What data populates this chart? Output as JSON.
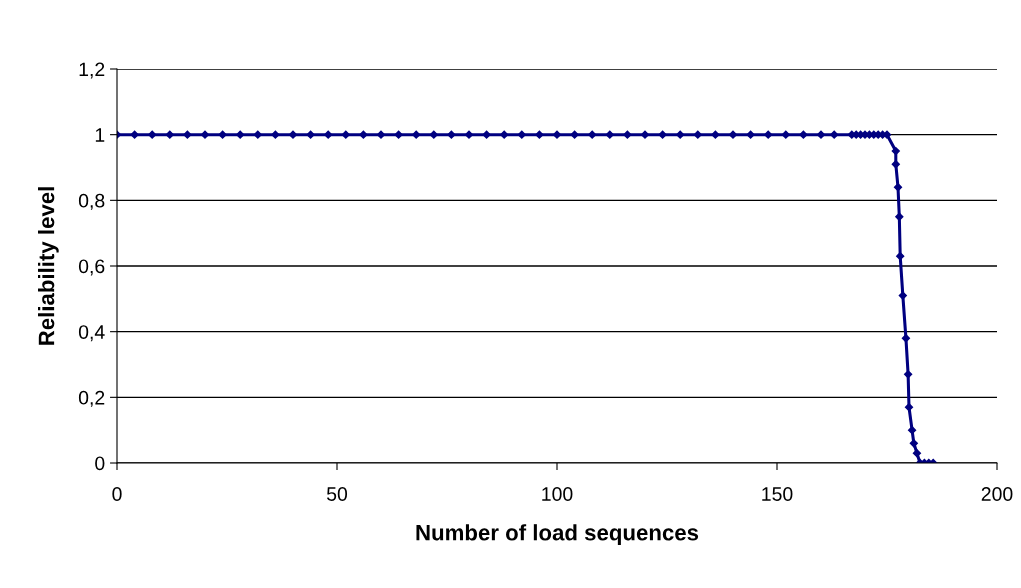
{
  "chart_data": {
    "type": "line",
    "xlabel": "Number of load sequences",
    "ylabel": "Reliability level",
    "xlim": [
      0,
      200
    ],
    "xticks": [
      0,
      50,
      100,
      150,
      200
    ],
    "ylim": [
      0,
      1.2
    ],
    "yticks": [
      {
        "value": 0,
        "label": "0"
      },
      {
        "value": 0.2,
        "label": "0,2"
      },
      {
        "value": 0.4,
        "label": "0,4"
      },
      {
        "value": 0.6,
        "label": "0,6"
      },
      {
        "value": 0.8,
        "label": "0,8"
      },
      {
        "value": 1,
        "label": "1"
      },
      {
        "value": 1.2,
        "label": "1,2"
      }
    ],
    "grid": "y",
    "legend": false,
    "marker": "diamond",
    "line_style": "solid",
    "series": [
      {
        "color": "#000080",
        "x": [
          0,
          4,
          8,
          12,
          16,
          20,
          24,
          28,
          32,
          36,
          40,
          44,
          48,
          52,
          56,
          60,
          64,
          68,
          72,
          76,
          80,
          84,
          88,
          92,
          96,
          100,
          104,
          108,
          112,
          116,
          120,
          124,
          128,
          132,
          136,
          140,
          144,
          148,
          152,
          156,
          160,
          163,
          167,
          168,
          169,
          170,
          171,
          172,
          173,
          174,
          175,
          177,
          177,
          177.5,
          177.8,
          178,
          178.6,
          179.3,
          179.8,
          180,
          180.7,
          181.1,
          181.8,
          182.5,
          183.5,
          184.5,
          185.5
        ],
        "values": [
          1,
          1,
          1,
          1,
          1,
          1,
          1,
          1,
          1,
          1,
          1,
          1,
          1,
          1,
          1,
          1,
          1,
          1,
          1,
          1,
          1,
          1,
          1,
          1,
          1,
          1,
          1,
          1,
          1,
          1,
          1,
          1,
          1,
          1,
          1,
          1,
          1,
          1,
          1,
          1,
          1,
          1,
          1,
          1,
          1,
          1,
          1,
          1,
          1,
          1,
          1,
          0.95,
          0.91,
          0.84,
          0.75,
          0.63,
          0.51,
          0.38,
          0.27,
          0.17,
          0.1,
          0.06,
          0.03,
          0,
          0,
          0,
          0
        ]
      }
    ]
  }
}
